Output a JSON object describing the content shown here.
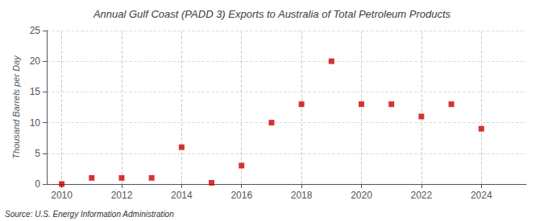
{
  "chart_data": {
    "type": "scatter",
    "title": "Annual Gulf Coast (PADD 3) Exports to Australia of Total Petroleum Products",
    "ylabel": "Thousand Barrels per Day",
    "annotations": [
      "Source: U.S. Energy Information Administration"
    ],
    "x": [
      2010,
      2011,
      2012,
      2013,
      2014,
      2015,
      2016,
      2017,
      2018,
      2019,
      2020,
      2021,
      2022,
      2023,
      2024
    ],
    "values": [
      0,
      1,
      1,
      1,
      6,
      0.2,
      3,
      10,
      13,
      20,
      13,
      13,
      11,
      13,
      9
    ],
    "color": "#cc0000",
    "marker": "square",
    "xlim": [
      2009.5,
      2025.5
    ],
    "xticks": [
      2010,
      2012,
      2014,
      2016,
      2018,
      2020,
      2022,
      2024
    ],
    "ylim": [
      0,
      25
    ],
    "yticks": [
      0,
      5,
      10,
      15,
      20,
      25
    ],
    "grid": true
  }
}
